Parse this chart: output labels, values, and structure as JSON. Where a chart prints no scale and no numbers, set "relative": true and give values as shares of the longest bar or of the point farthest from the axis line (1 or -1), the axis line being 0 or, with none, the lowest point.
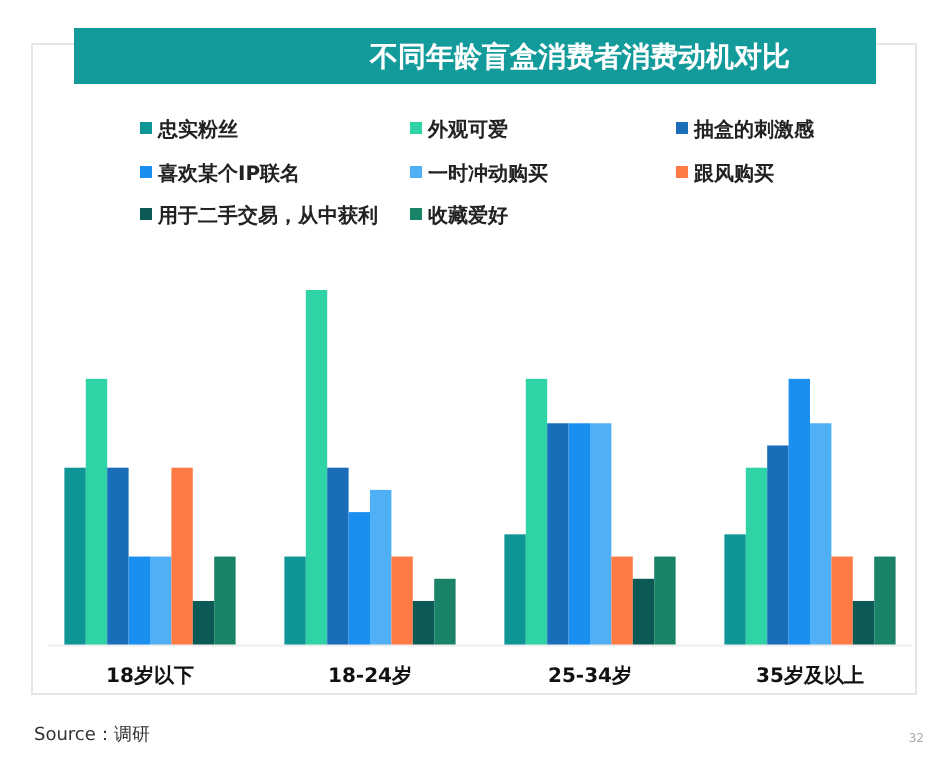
{
  "chart_data": {
    "type": "bar",
    "relative": true,
    "title": "不同年龄盲盒消费者消费动机对比",
    "categories": [
      "18岁以下",
      "18-24岁",
      "25-34岁",
      "35岁及以上"
    ],
    "legend": "top",
    "series": [
      {
        "name": "忠实粉丝",
        "color": "#0e9596",
        "values": [
          0.5,
          0.25,
          0.3125,
          0.3125
        ]
      },
      {
        "name": "外观可爱",
        "color": "#2fd3a6",
        "values": [
          0.75,
          1,
          0.75,
          0.5
        ]
      },
      {
        "name": "抽盒的刺激感",
        "color": "#1a6db8",
        "values": [
          0.5,
          0.5,
          0.625,
          0.5625
        ]
      },
      {
        "name": "喜欢某个IP联名",
        "color": "#1b8ff0",
        "values": [
          0.25,
          0.375,
          0.625,
          0.75
        ]
      },
      {
        "name": "一时冲动购买",
        "color": "#4fb0f5",
        "values": [
          0.25,
          0.4375,
          0.625,
          0.625
        ]
      },
      {
        "name": "跟风购买",
        "color": "#ff7a45",
        "values": [
          0.5,
          0.25,
          0.25,
          0.25
        ]
      },
      {
        "name": "用于二手交易，从中获利",
        "color": "#0b5a55",
        "values": [
          0.125,
          0.125,
          0.1875,
          0.125
        ]
      },
      {
        "name": "收藏爱好",
        "color": "#1a8266",
        "values": [
          0.25,
          0.1875,
          0.25,
          0.25
        ]
      }
    ],
    "annotations": [
      "Source：调研",
      "32"
    ]
  }
}
